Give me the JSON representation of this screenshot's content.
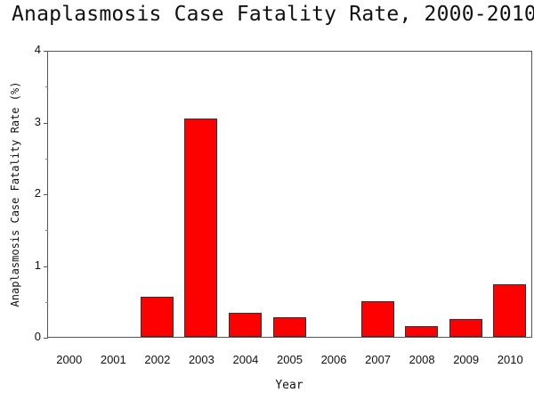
{
  "chart_data": {
    "type": "bar",
    "title": "Anaplasmosis Case Fatality Rate, 2000-2010",
    "xlabel": "Year",
    "ylabel": "Anaplasmosis Case Fatality Rate (%)",
    "categories": [
      "2000",
      "2001",
      "2002",
      "2003",
      "2004",
      "2005",
      "2006",
      "2007",
      "2008",
      "2009",
      "2010"
    ],
    "values": [
      0,
      0,
      0.56,
      3.04,
      0.34,
      0.27,
      0,
      0.5,
      0.15,
      0.25,
      0.73
    ],
    "ylim": [
      0,
      4
    ],
    "yticks": [
      "0",
      "1",
      "2",
      "3",
      "4"
    ],
    "grid": false,
    "legend": null,
    "bar_color": "#ff0000"
  }
}
